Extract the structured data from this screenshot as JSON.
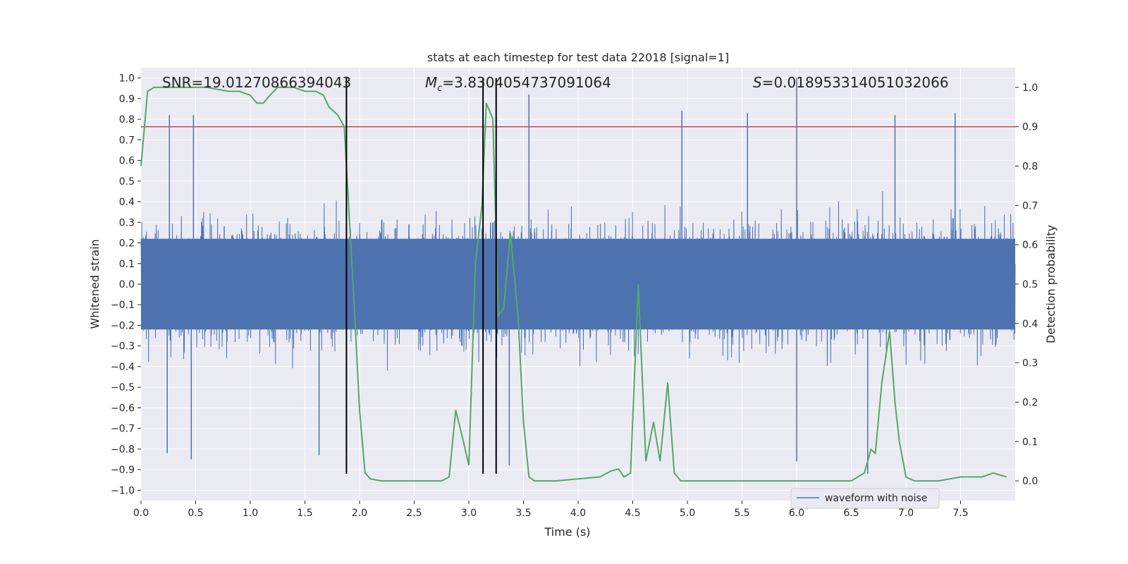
{
  "chart_data": {
    "type": "line",
    "title": "stats at each timestep for test data 22018 [signal=1]",
    "xlabel": "Time (s)",
    "ylabel": "Whitened strain",
    "y2label": "Detection probability",
    "xlim": [
      0.0,
      8.0
    ],
    "ylim": [
      -1.05,
      1.05
    ],
    "y2lim": [
      -0.05,
      1.05
    ],
    "grid": true,
    "legend_loc": "lower-right",
    "x_ticks": [
      0.0,
      0.5,
      1.0,
      1.5,
      2.0,
      2.5,
      3.0,
      3.5,
      4.0,
      4.5,
      5.0,
      5.5,
      6.0,
      6.5,
      7.0,
      7.5
    ],
    "x_tick_labels": [
      "0.0",
      "0.5",
      "1.0",
      "1.5",
      "2.0",
      "2.5",
      "3.0",
      "3.5",
      "4.0",
      "4.5",
      "5.0",
      "5.5",
      "6.0",
      "6.5",
      "7.0",
      "7.5"
    ],
    "y_ticks": [
      1.0,
      0.9,
      0.8,
      0.7,
      0.6,
      0.5,
      0.4,
      0.3,
      0.2,
      0.1,
      0.0,
      -0.1,
      -0.2,
      -0.3,
      -0.4,
      -0.5,
      -0.6,
      -0.7,
      -0.8,
      -0.9,
      -1.0
    ],
    "y_tick_labels": [
      "1.0",
      "0.9",
      "0.8",
      "0.7",
      "0.6",
      "0.5",
      "0.4",
      "0.3",
      "0.2",
      "0.1",
      "0.0",
      "−0.1",
      "−0.2",
      "−0.3",
      "−0.4",
      "−0.5",
      "−0.6",
      "−0.7",
      "−0.8",
      "−0.9",
      "−1.0"
    ],
    "y2_ticks": [
      1.0,
      0.9,
      0.8,
      0.7,
      0.6,
      0.5,
      0.4,
      0.3,
      0.2,
      0.1,
      0.0
    ],
    "y2_tick_labels": [
      "1.0",
      "0.9",
      "0.8",
      "0.7",
      "0.6",
      "0.5",
      "0.4",
      "0.3",
      "0.2",
      "0.1",
      "0.0"
    ],
    "annotations": {
      "snr": "SNR=19.01270866394043",
      "mc_symbol": "M",
      "mc_sub": "c",
      "mc_value": "=3.8304054737091064",
      "s_symbol": "S",
      "s_value": "=0.018953314051032066"
    },
    "threshold": {
      "value": 0.9,
      "axis": "y2",
      "color": "#c44e52"
    },
    "vertical_lines": {
      "x": [
        1.88,
        3.13,
        3.25
      ],
      "color": "#000000"
    },
    "series": [
      {
        "name": "waveform with noise",
        "axis": "y",
        "color": "#4c72b0",
        "style": "dense noise, amplitude mostly within ±0.5, peaks near ±0.85",
        "peaks": [
          {
            "x": 0.26,
            "y": 0.82
          },
          {
            "x": 0.48,
            "y": 0.82
          },
          {
            "x": 3.55,
            "y": 0.92
          },
          {
            "x": 4.95,
            "y": 0.84
          },
          {
            "x": 5.55,
            "y": 0.83
          },
          {
            "x": 6.0,
            "y": 1.0
          },
          {
            "x": 6.9,
            "y": 0.82
          },
          {
            "x": 7.45,
            "y": 0.83
          },
          {
            "x": 0.46,
            "y": -0.85
          },
          {
            "x": 0.24,
            "y": -0.82
          },
          {
            "x": 1.63,
            "y": -0.83
          },
          {
            "x": 3.37,
            "y": -0.88
          },
          {
            "x": 6.0,
            "y": -0.86
          },
          {
            "x": 6.65,
            "y": -0.92
          }
        ]
      },
      {
        "name": "detection probability",
        "axis": "y2",
        "color": "#55a868",
        "x": [
          0.0,
          0.06,
          0.12,
          0.2,
          0.4,
          0.6,
          0.8,
          0.9,
          1.0,
          1.06,
          1.12,
          1.18,
          1.25,
          1.32,
          1.4,
          1.5,
          1.6,
          1.67,
          1.72,
          1.8,
          1.86,
          1.9,
          1.95,
          2.0,
          2.05,
          2.1,
          2.2,
          2.4,
          2.6,
          2.75,
          2.82,
          2.88,
          2.95,
          3.0,
          3.06,
          3.12,
          3.16,
          3.22,
          3.27,
          3.32,
          3.38,
          3.45,
          3.5,
          3.55,
          3.6,
          3.8,
          4.0,
          4.2,
          4.3,
          4.37,
          4.42,
          4.48,
          4.55,
          4.62,
          4.69,
          4.75,
          4.82,
          4.88,
          4.94,
          5.0,
          5.5,
          6.0,
          6.5,
          6.62,
          6.68,
          6.72,
          6.78,
          6.85,
          6.9,
          6.94,
          7.0,
          7.08,
          7.15,
          7.3,
          7.5,
          7.6,
          7.7,
          7.8,
          7.92
        ],
        "y": [
          0.8,
          0.99,
          1.0,
          1.0,
          1.0,
          1.0,
          0.99,
          0.99,
          0.98,
          0.96,
          0.96,
          0.98,
          1.0,
          1.0,
          1.0,
          0.99,
          0.99,
          0.98,
          0.95,
          0.93,
          0.9,
          0.7,
          0.45,
          0.18,
          0.02,
          0.005,
          0.0,
          0.0,
          0.0,
          0.0,
          0.01,
          0.18,
          0.1,
          0.04,
          0.55,
          0.7,
          0.96,
          0.92,
          0.42,
          0.44,
          0.63,
          0.42,
          0.15,
          0.01,
          0.0,
          0.0,
          0.005,
          0.01,
          0.025,
          0.03,
          0.01,
          0.02,
          0.5,
          0.05,
          0.15,
          0.05,
          0.25,
          0.02,
          0.0,
          0.0,
          0.0,
          0.0,
          0.0,
          0.02,
          0.08,
          0.07,
          0.25,
          0.38,
          0.2,
          0.1,
          0.01,
          0.0,
          0.0,
          0.0,
          0.01,
          0.01,
          0.01,
          0.02,
          0.01
        ]
      }
    ]
  }
}
